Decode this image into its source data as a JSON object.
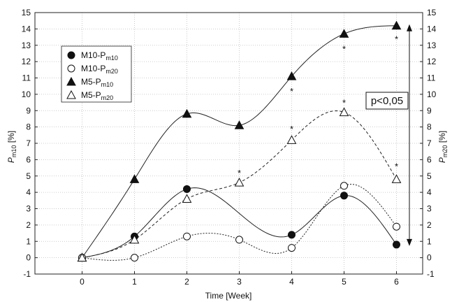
{
  "chart_data": {
    "type": "scatter",
    "title": "",
    "xlabel": "Time [Week]",
    "ylabel_left": {
      "main": "P",
      "sub": "m10",
      "unit": " [%]"
    },
    "ylabel_right": {
      "main": "P",
      "sub": "m20",
      "unit": " [%]"
    },
    "xlim": [
      -0.9,
      6.5
    ],
    "ylim": [
      -1,
      15
    ],
    "x_ticks": [
      "0",
      "1",
      "2",
      "3",
      "4",
      "5",
      "6"
    ],
    "y_ticks": [
      "-1",
      "0",
      "1",
      "2",
      "3",
      "4",
      "5",
      "6",
      "7",
      "8",
      "9",
      "10",
      "11",
      "12",
      "13",
      "14",
      "15"
    ],
    "grid": true,
    "legend_position": "top-left",
    "series": [
      {
        "label_main": "M10-P",
        "label_sub": "m10",
        "marker": "filled-circle",
        "line": "solid",
        "x": [
          0,
          1,
          2,
          3,
          4,
          5,
          6
        ],
        "y": [
          0,
          1.3,
          4.2,
          null,
          1.4,
          3.8,
          0.8
        ]
      },
      {
        "label_main": "M10-P",
        "label_sub": "m20",
        "marker": "open-circle",
        "line": "dotted",
        "x": [
          0,
          1,
          2,
          3,
          4,
          5,
          6
        ],
        "y": [
          0,
          0,
          1.3,
          1.1,
          0.6,
          4.4,
          1.9
        ]
      },
      {
        "label_main": "M5-P",
        "label_sub": "m10",
        "marker": "filled-triangle",
        "line": "solid",
        "x": [
          0,
          1,
          2,
          3,
          4,
          5,
          6
        ],
        "y": [
          0,
          4.8,
          8.8,
          8.1,
          11.1,
          13.7,
          14.2
        ]
      },
      {
        "label_main": "M5-P",
        "label_sub": "m20",
        "marker": "open-triangle",
        "line": "dashed",
        "x": [
          0,
          1,
          2,
          3,
          4,
          5,
          6
        ],
        "y": [
          0,
          1.1,
          3.6,
          4.6,
          7.2,
          8.9,
          4.8
        ]
      }
    ],
    "significance_markers": [
      {
        "x": 3,
        "y": 5.2,
        "text": "*"
      },
      {
        "x": 4,
        "y": 7.9,
        "text": "*"
      },
      {
        "x": 4,
        "y": 10.2,
        "text": "*"
      },
      {
        "x": 5,
        "y": 9.5,
        "text": "*"
      },
      {
        "x": 5,
        "y": 12.8,
        "text": "*"
      },
      {
        "x": 6,
        "y": 5.6,
        "text": "*"
      },
      {
        "x": 6,
        "y": 13.4,
        "text": "*"
      }
    ],
    "annotation": {
      "text": "p<0,05",
      "arrow_from_y": 14.2,
      "arrow_to_y": 0.8
    }
  }
}
